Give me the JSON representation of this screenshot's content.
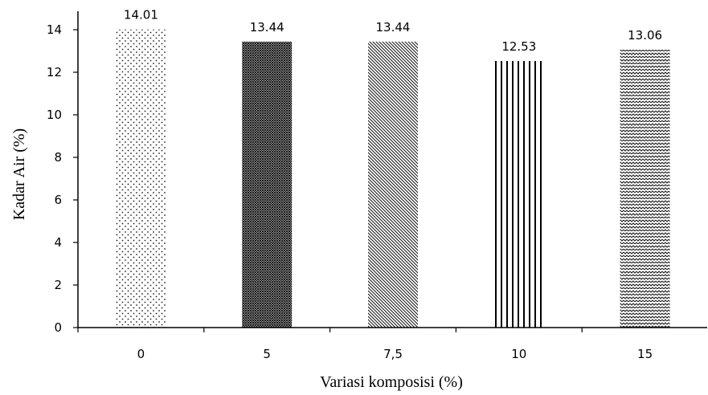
{
  "chart_data": {
    "type": "bar",
    "categories": [
      "0",
      "5",
      "7,5",
      "10",
      "15"
    ],
    "values": [
      14.01,
      13.44,
      13.44,
      12.53,
      13.06
    ],
    "value_labels": [
      "14.01",
      "13.44",
      "13.44",
      "12.53",
      "13.06"
    ],
    "xlabel": "Variasi komposisi  (%)",
    "ylabel": "Kadar Air (%)",
    "ylim": [
      0,
      14
    ],
    "yticks": [
      0,
      2,
      4,
      6,
      8,
      10,
      12,
      14
    ],
    "grid": false,
    "legend": "none",
    "bar_patterns": [
      "dots",
      "dense-crosshatch",
      "diagonal-lines",
      "vertical-lines",
      "zigzag"
    ]
  }
}
